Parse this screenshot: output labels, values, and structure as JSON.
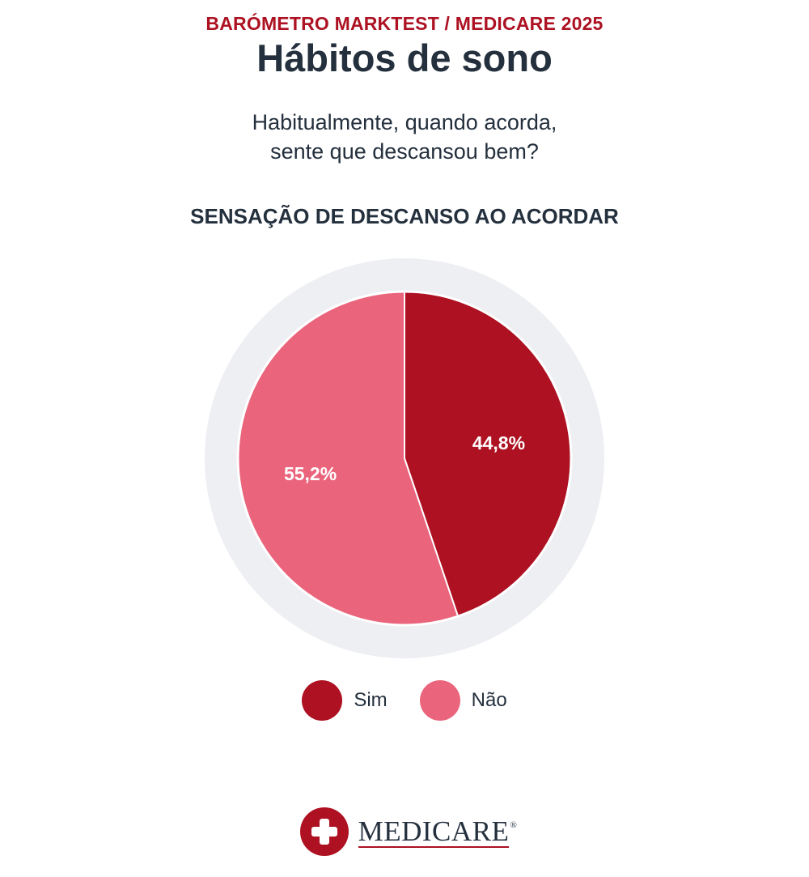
{
  "header": {
    "kicker": "BARÓMETRO MARKTEST / MEDICARE 2025",
    "title": "Hábitos de sono",
    "question_line1": "Habitualmente, quando acorda,",
    "question_line2": "sente que descansou bem?"
  },
  "colors": {
    "brand": "#ad1122",
    "sim": "#ad1122",
    "nao": "#ea647c",
    "ring": "#eeeff3",
    "text": "#24303d"
  },
  "chart_data": {
    "type": "pie",
    "title": "SENSAÇÃO DE DESCANSO AO ACORDAR",
    "slices": [
      {
        "label": "Sim",
        "value": 44.8,
        "display": "44,8%",
        "color": "#ad1122"
      },
      {
        "label": "Não",
        "value": 55.2,
        "display": "55,2%",
        "color": "#ea647c"
      }
    ],
    "start_angle_deg": 0,
    "direction": "clockwise",
    "legend_position": "bottom"
  },
  "legend": {
    "items": [
      {
        "label": "Sim",
        "color": "#ad1122"
      },
      {
        "label": "Não",
        "color": "#ea647c"
      }
    ]
  },
  "logo": {
    "text": "MEDICARE",
    "registered": "®"
  }
}
